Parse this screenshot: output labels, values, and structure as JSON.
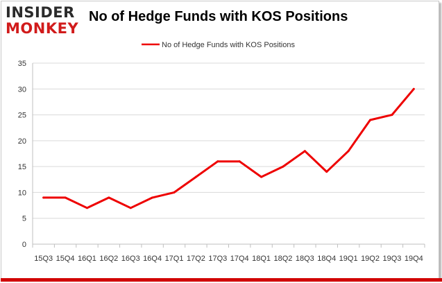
{
  "branding": {
    "logo_top": "INSIDER",
    "logo_bottom": "MONKEY"
  },
  "chart_data": {
    "type": "line",
    "title": "No of Hedge Funds with KOS Positions",
    "categories": [
      "15Q3",
      "15Q4",
      "16Q1",
      "16Q2",
      "16Q3",
      "16Q4",
      "17Q1",
      "17Q2",
      "17Q3",
      "17Q4",
      "18Q1",
      "18Q2",
      "18Q3",
      "18Q4",
      "19Q1",
      "19Q2",
      "19Q3",
      "19Q4"
    ],
    "series": [
      {
        "name": "No of Hedge Funds with KOS Positions",
        "values": [
          9,
          9,
          7,
          9,
          7,
          9,
          10,
          13,
          16,
          16,
          13,
          15,
          18,
          14,
          18,
          24,
          25,
          30
        ],
        "color": "#ee0000"
      }
    ],
    "ylim": [
      0,
      35
    ],
    "yticks": [
      0,
      5,
      10,
      15,
      20,
      25,
      30,
      35
    ],
    "grid": true,
    "legend": "top-center"
  }
}
